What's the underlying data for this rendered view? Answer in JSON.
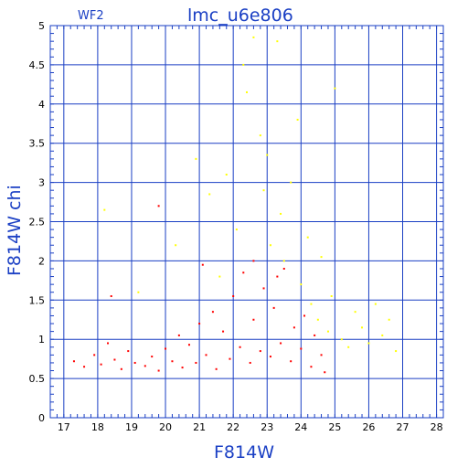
{
  "chart_data": {
    "type": "scatter",
    "title": "lmc_u6e806",
    "subtitle": "WF2",
    "xlabel": "F814W",
    "ylabel": "F814W  chi",
    "xlim": [
      16.6,
      28.2
    ],
    "ylim": [
      0,
      5
    ],
    "xticks": [
      17,
      18,
      19,
      20,
      21,
      22,
      23,
      24,
      25,
      26,
      27,
      28
    ],
    "yticks": [
      0,
      0.5,
      1,
      1.5,
      2,
      2.5,
      3,
      3.5,
      4,
      4.5,
      5
    ],
    "ytick_labels": [
      "0",
      "0.5",
      "1",
      "1.5",
      "2",
      "2.5",
      "3",
      "3.5",
      "4",
      "4.5",
      "5"
    ],
    "grid": true,
    "colors": {
      "grid": "#1a3fc4",
      "axis_text": "#1a3fc4",
      "series_red": "#ff0000",
      "series_yellow": "#ffff00"
    },
    "series": [
      {
        "color": "#ff0000",
        "points": [
          [
            17.3,
            0.72
          ],
          [
            17.6,
            0.65
          ],
          [
            17.9,
            0.8
          ],
          [
            18.1,
            0.68
          ],
          [
            18.3,
            0.95
          ],
          [
            18.5,
            0.74
          ],
          [
            18.7,
            0.62
          ],
          [
            18.9,
            0.85
          ],
          [
            19.1,
            0.7
          ],
          [
            19.4,
            0.66
          ],
          [
            19.6,
            0.78
          ],
          [
            19.8,
            0.6
          ],
          [
            20.0,
            0.88
          ],
          [
            20.2,
            0.72
          ],
          [
            20.4,
            1.05
          ],
          [
            20.5,
            0.64
          ],
          [
            20.7,
            0.93
          ],
          [
            20.9,
            0.7
          ],
          [
            21.0,
            1.2
          ],
          [
            21.2,
            0.8
          ],
          [
            21.4,
            1.35
          ],
          [
            21.5,
            0.62
          ],
          [
            21.7,
            1.1
          ],
          [
            21.9,
            0.75
          ],
          [
            22.0,
            1.55
          ],
          [
            22.2,
            0.9
          ],
          [
            22.3,
            1.85
          ],
          [
            22.5,
            0.7
          ],
          [
            22.6,
            1.25
          ],
          [
            22.8,
            0.85
          ],
          [
            22.9,
            1.65
          ],
          [
            23.1,
            0.78
          ],
          [
            23.2,
            1.4
          ],
          [
            23.4,
            0.95
          ],
          [
            23.5,
            1.9
          ],
          [
            23.7,
            0.72
          ],
          [
            23.8,
            1.15
          ],
          [
            24.0,
            0.88
          ],
          [
            24.1,
            1.3
          ],
          [
            24.3,
            0.65
          ],
          [
            24.4,
            1.05
          ],
          [
            24.6,
            0.8
          ],
          [
            24.7,
            0.58
          ],
          [
            18.4,
            1.55
          ],
          [
            19.8,
            2.7
          ],
          [
            21.1,
            1.95
          ],
          [
            22.6,
            2.0
          ],
          [
            23.3,
            1.8
          ]
        ]
      },
      {
        "color": "#ffff00",
        "points": [
          [
            18.2,
            2.65
          ],
          [
            19.2,
            1.6
          ],
          [
            20.3,
            2.2
          ],
          [
            20.9,
            3.3
          ],
          [
            21.3,
            2.85
          ],
          [
            21.6,
            1.8
          ],
          [
            21.8,
            3.1
          ],
          [
            22.1,
            2.4
          ],
          [
            22.3,
            4.5
          ],
          [
            22.4,
            4.15
          ],
          [
            22.6,
            4.85
          ],
          [
            22.8,
            3.6
          ],
          [
            22.9,
            2.9
          ],
          [
            23.0,
            3.35
          ],
          [
            23.1,
            2.2
          ],
          [
            23.3,
            4.8
          ],
          [
            23.4,
            2.6
          ],
          [
            23.5,
            2.0
          ],
          [
            23.7,
            3.0
          ],
          [
            23.9,
            3.8
          ],
          [
            24.0,
            1.7
          ],
          [
            24.2,
            2.3
          ],
          [
            24.3,
            1.45
          ],
          [
            24.5,
            1.25
          ],
          [
            24.6,
            2.05
          ],
          [
            24.8,
            1.1
          ],
          [
            24.9,
            1.55
          ],
          [
            25.0,
            4.2
          ],
          [
            25.2,
            1.0
          ],
          [
            25.4,
            0.9
          ],
          [
            25.6,
            1.35
          ],
          [
            25.8,
            1.15
          ],
          [
            26.0,
            0.95
          ],
          [
            26.2,
            1.45
          ],
          [
            26.4,
            1.05
          ],
          [
            26.6,
            1.25
          ],
          [
            26.8,
            0.85
          ]
        ]
      }
    ]
  }
}
